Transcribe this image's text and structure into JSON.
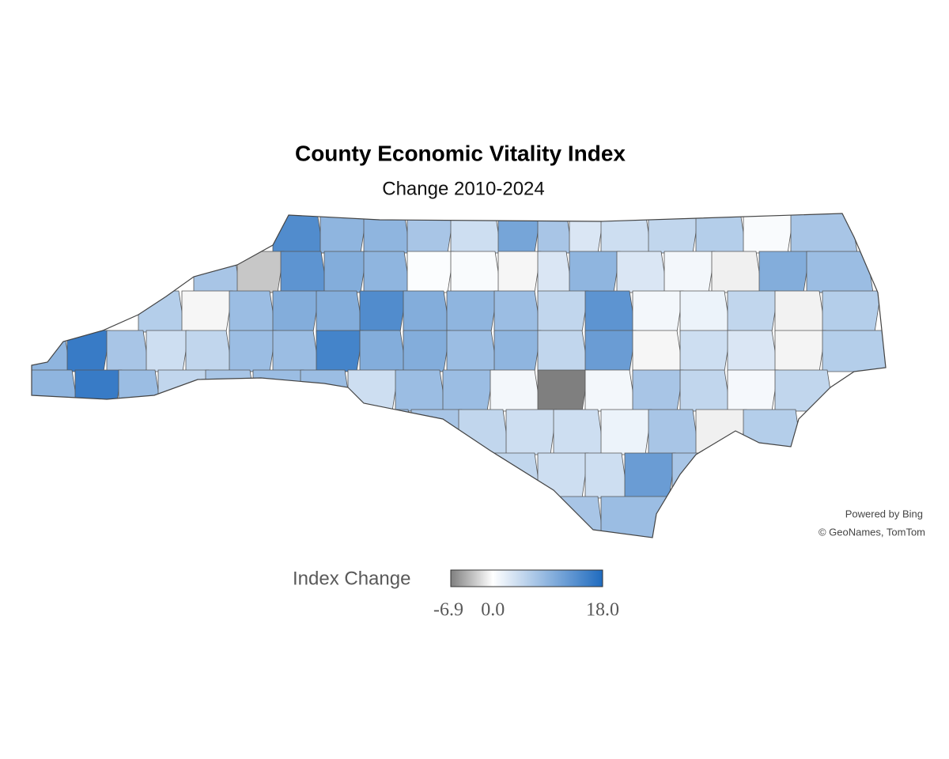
{
  "chart_data": {
    "type": "map",
    "title": "County Economic Vitality Index",
    "subtitle": "Change 2010-2024",
    "legend_title": "Index Change",
    "colors": {
      "low": "#7f7f7f",
      "mid": "#ffffff",
      "high": "#1f6bbf"
    },
    "color_scale": [
      -6.9,
      {
        "value": 0,
        "label": "0.0"
      },
      {
        "value": 18,
        "label": "18.0"
      }
    ],
    "attribution": [
      "Powered by Bing",
      "© GeoNames, TomTom"
    ],
    "values": [
      14,
      9,
      9,
      7,
      4,
      11,
      7,
      3,
      4,
      5,
      6,
      0.5,
      7,
      7,
      -3,
      13,
      10,
      9,
      0.3,
      0.5,
      -0.5,
      3,
      9,
      3,
      1,
      -0.8,
      10,
      8,
      6,
      -0.5,
      8,
      10,
      10,
      14,
      10,
      9,
      8,
      5,
      13,
      1,
      1.5,
      5,
      -0.7,
      6,
      9,
      16,
      7,
      4,
      5,
      8,
      8,
      15,
      10,
      10,
      8,
      9,
      5,
      12,
      -0.5,
      4,
      3,
      -0.6,
      6,
      9,
      16,
      8,
      5,
      7,
      8,
      8,
      4,
      8,
      8,
      1,
      -6.9,
      1,
      7,
      5,
      0.8,
      5,
      8,
      7,
      5,
      4,
      4,
      1.5,
      7,
      -0.8,
      6,
      5,
      4,
      4,
      12,
      7,
      7,
      8
    ]
  }
}
